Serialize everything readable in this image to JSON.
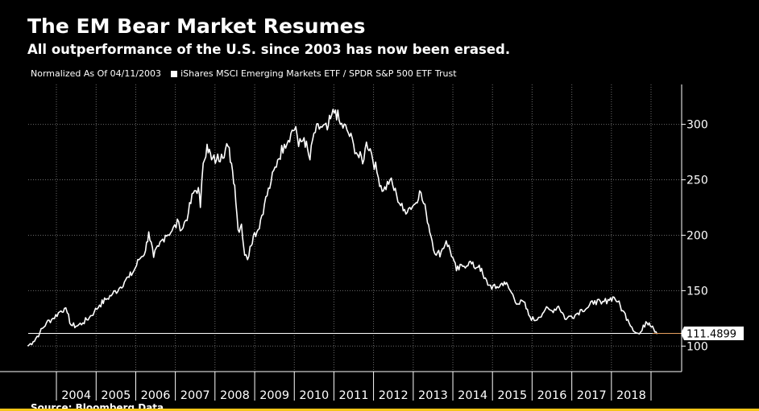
{
  "header": {
    "title": "The EM Bear Market Resumes",
    "subtitle": "All outperformance of the U.S. since 2003 has now been erased."
  },
  "legend": {
    "normalized_text": "Normalized As Of 04/11/2003",
    "series_label": "iShares MSCI Emerging Markets ETF / SPDR S&P 500 ETF Trust"
  },
  "source": {
    "text": "Source: Bloomberg Data"
  },
  "colors": {
    "background": "#000000",
    "line": "#ffffff",
    "grid": "#6a6a6a",
    "reference_line": "#ffffff",
    "reference_line_right": "#e8a060",
    "bottom_rule": "#f5c518"
  },
  "chart_data": {
    "type": "line",
    "title": "The EM Bear Market Resumes",
    "subtitle": "All outperformance of the U.S. since 2003 has now been erased.",
    "xlabel": "",
    "ylabel": "",
    "ylim": [
      77,
      336
    ],
    "xlim": [
      "2003-04-11",
      "2019-03-01"
    ],
    "yticks": [
      100,
      150,
      200,
      250,
      300
    ],
    "x_tick_labels": [
      "2004",
      "2005",
      "2006",
      "2007",
      "2008",
      "2009",
      "2010",
      "2011",
      "2012",
      "2013",
      "2014",
      "2015",
      "2016",
      "2017",
      "2018"
    ],
    "grid": true,
    "y_axis_position": "right",
    "last_value_label": "111.4899",
    "series": [
      {
        "name": "iShares MSCI Emerging Markets ETF / SPDR S&P 500 ETF Trust",
        "x": [
          "2003-04-11",
          "2003-06-01",
          "2003-08-01",
          "2003-10-01",
          "2003-12-01",
          "2004-02-01",
          "2004-03-15",
          "2004-04-10",
          "2004-05-15",
          "2004-07-01",
          "2004-09-01",
          "2004-11-01",
          "2004-12-15",
          "2005-02-01",
          "2005-04-01",
          "2005-06-01",
          "2005-08-01",
          "2005-10-01",
          "2005-11-01",
          "2005-12-15",
          "2006-02-01",
          "2006-04-01",
          "2006-05-01",
          "2006-06-15",
          "2006-08-01",
          "2006-10-01",
          "2006-12-01",
          "2007-02-01",
          "2007-03-01",
          "2007-05-01",
          "2007-06-15",
          "2007-08-01",
          "2007-08-20",
          "2007-09-15",
          "2007-10-20",
          "2007-12-01",
          "2008-01-15",
          "2008-03-01",
          "2008-05-01",
          "2008-06-01",
          "2008-07-01",
          "2008-08-01",
          "2008-09-01",
          "2008-10-01",
          "2008-10-27",
          "2008-11-20",
          "2008-12-20",
          "2009-02-01",
          "2009-04-01",
          "2009-06-01",
          "2009-08-01",
          "2009-10-01",
          "2009-12-01",
          "2010-01-15",
          "2010-02-10",
          "2010-04-01",
          "2010-05-25",
          "2010-07-01",
          "2010-09-01",
          "2010-11-01",
          "2010-12-01",
          "2011-01-15",
          "2011-03-01",
          "2011-05-01",
          "2011-07-01",
          "2011-08-20",
          "2011-10-04",
          "2011-10-28",
          "2011-12-01",
          "2012-02-15",
          "2012-04-01",
          "2012-06-01",
          "2012-08-01",
          "2012-10-01",
          "2012-12-01",
          "2013-01-15",
          "2013-03-01",
          "2013-05-01",
          "2013-06-24",
          "2013-08-01",
          "2013-09-15",
          "2013-11-01",
          "2014-01-01",
          "2014-02-03",
          "2014-04-01",
          "2014-06-01",
          "2014-07-15",
          "2014-09-01",
          "2014-10-15",
          "2014-12-01",
          "2015-02-01",
          "2015-04-20",
          "2015-06-01",
          "2015-08-24",
          "2015-10-15",
          "2015-12-01",
          "2016-01-21",
          "2016-03-01",
          "2016-05-01",
          "2016-07-01",
          "2016-09-01",
          "2016-11-10",
          "2016-12-15",
          "2017-02-01",
          "2017-04-01",
          "2017-06-01",
          "2017-08-01",
          "2017-10-01",
          "2017-12-01",
          "2018-01-26",
          "2018-03-01",
          "2018-04-15",
          "2018-06-01",
          "2018-08-15",
          "2018-09-15",
          "2018-10-10",
          "2018-11-15",
          "2018-12-15",
          "2019-01-15",
          "2019-02-15",
          "2019-03-01"
        ],
        "values": [
          100,
          104,
          112,
          121,
          125,
          131,
          134,
          130,
          119,
          118,
          121,
          126,
          131,
          137,
          142,
          147,
          152,
          160,
          162,
          168,
          178,
          186,
          203,
          180,
          190,
          200,
          204,
          212,
          205,
          220,
          238,
          243,
          225,
          265,
          282,
          268,
          268,
          273,
          280,
          265,
          245,
          205,
          210,
          182,
          178,
          190,
          200,
          205,
          228,
          248,
          268,
          282,
          292,
          298,
          280,
          288,
          268,
          292,
          298,
          295,
          305,
          313,
          300,
          295,
          282,
          270,
          268,
          284,
          278,
          252,
          240,
          250,
          236,
          222,
          225,
          228,
          240,
          220,
          195,
          182,
          185,
          195,
          180,
          168,
          172,
          176,
          171,
          173,
          161,
          155,
          152,
          158,
          152,
          138,
          140,
          128,
          123,
          126,
          133,
          132,
          136,
          124,
          127,
          128,
          133,
          135,
          141,
          138,
          142,
          144,
          140,
          132,
          124,
          112,
          111,
          114,
          122,
          121,
          118,
          113,
          111.4899
        ]
      }
    ]
  }
}
